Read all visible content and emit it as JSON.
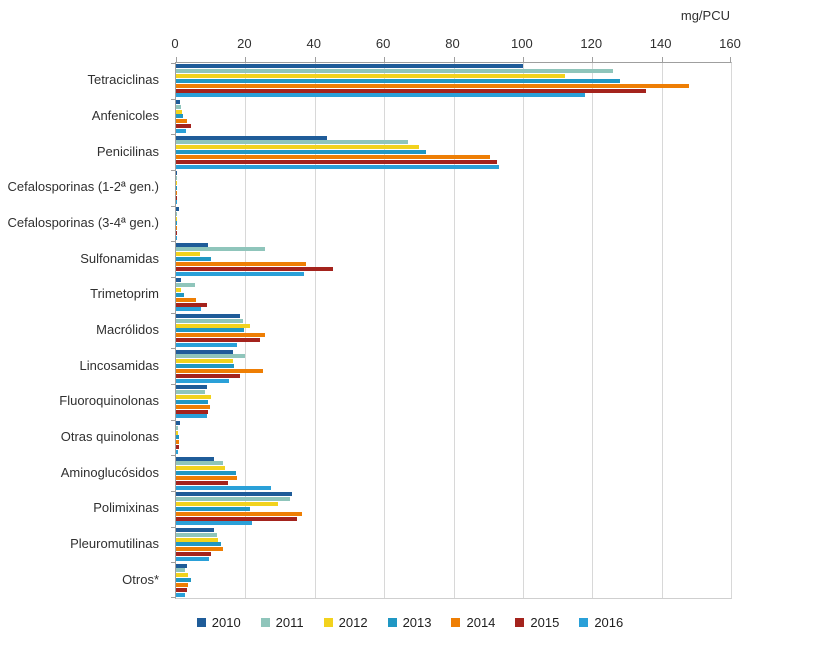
{
  "chart_data": {
    "type": "bar",
    "orientation": "horizontal",
    "title": "",
    "unit_label": "mg/PCU",
    "xlabel": "mg/PCU",
    "ylabel": "",
    "xlim": [
      0,
      160
    ],
    "tick_step": 20,
    "ticks": [
      0,
      20,
      40,
      60,
      80,
      100,
      120,
      140,
      160
    ],
    "grid": true,
    "legend_position": "bottom",
    "categories": [
      "Tetraciclinas",
      "Anfenicoles",
      "Penicilinas",
      "Cefalosporinas (1-2ª gen.)",
      "Cefalosporinas (3-4ª gen.)",
      "Sulfonamidas",
      "Trimetoprim",
      "Macrólidos",
      "Lincosamidas",
      "Fluoroquinolonas",
      "Otras quinolonas",
      "Aminoglucósidos",
      "Polimixinas",
      "Pleuromutilinas",
      "Otros*"
    ],
    "series": [
      {
        "name": "2010",
        "color": "#1F5C99",
        "values": [
          100,
          1.2,
          43.5,
          0.2,
          1.0,
          9.3,
          1.4,
          18.4,
          16.5,
          8.8,
          1.1,
          11.0,
          33.3,
          11.0,
          3.3
        ]
      },
      {
        "name": "2011",
        "color": "#8FC5BB",
        "values": [
          126,
          1.5,
          67,
          0.15,
          0.3,
          25.6,
          5.4,
          19.4,
          19.9,
          8.3,
          0.7,
          13.6,
          32.8,
          11.7,
          2.7
        ]
      },
      {
        "name": "2012",
        "color": "#F2D21D",
        "values": [
          112,
          1.8,
          70,
          0.15,
          0.3,
          7.0,
          1.4,
          21.3,
          16.5,
          10.2,
          0.7,
          14.1,
          29.5,
          12.0,
          3.5
        ]
      },
      {
        "name": "2013",
        "color": "#2097C3",
        "values": [
          128,
          2.0,
          72,
          0.15,
          0.3,
          10.2,
          2.4,
          19.7,
          16.8,
          9.1,
          0.8,
          17.2,
          21.3,
          12.9,
          4.3
        ]
      },
      {
        "name": "2014",
        "color": "#EE7E04",
        "values": [
          148,
          3.2,
          90.5,
          0.15,
          0.3,
          37.6,
          5.9,
          25.6,
          25.1,
          9.8,
          0.8,
          17.7,
          36.2,
          13.6,
          3.5
        ]
      },
      {
        "name": "2015",
        "color": "#A4231D",
        "values": [
          135.5,
          4.2,
          92.5,
          0.15,
          0.3,
          45.3,
          8.8,
          24.2,
          18.4,
          9.3,
          0.9,
          15.0,
          34.8,
          10.0,
          3.3
        ]
      },
      {
        "name": "2016",
        "color": "#2AA0D8",
        "values": [
          118,
          2.8,
          93,
          0.15,
          0.3,
          37.0,
          7.2,
          17.5,
          15.2,
          8.8,
          0.7,
          27.4,
          21.8,
          9.6,
          2.5
        ]
      }
    ]
  },
  "colors": {
    "grid": "#D8D8D8",
    "axis": "#9F9F9F",
    "text": "#303030"
  }
}
